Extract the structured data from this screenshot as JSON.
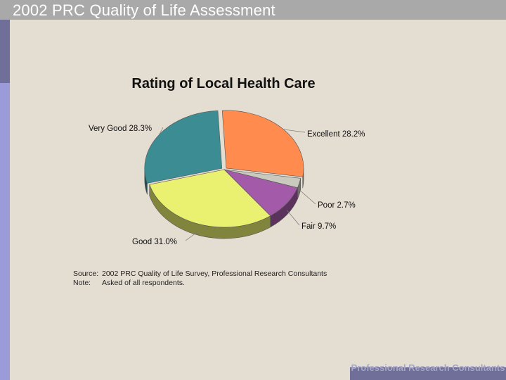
{
  "slide": {
    "title": "2002 PRC Quality of Life Assessment",
    "footer": "Professional Research Consultants"
  },
  "source": {
    "source_label": "Source:",
    "source_text": "2002 PRC Quality of Life Survey, Professional Research Consultants",
    "note_label": "Note:",
    "note_text": "Asked of all respondents."
  },
  "chart_data": {
    "type": "pie",
    "title": "Rating of Local Health Care",
    "slices": [
      {
        "label": "Excellent",
        "value": 28.2,
        "value_label": "28.2%",
        "color": "#ff8b4f"
      },
      {
        "label": "Poor",
        "value": 2.7,
        "value_label": "2.7%",
        "color": "#c9c9bd"
      },
      {
        "label": "Fair",
        "value": 9.7,
        "value_label": "9.7%",
        "color": "#a35aa8"
      },
      {
        "label": "Good",
        "value": 31.0,
        "value_label": "31.0%",
        "color": "#eaf06f"
      },
      {
        "label": "Very Good",
        "value": 28.3,
        "value_label": "28.3%",
        "color": "#3b8d93"
      }
    ]
  },
  "colors": {
    "background": "#e4ddd2",
    "title_bar": "#a9a9a9",
    "accent_dark": "#6f6f99",
    "accent_light": "#9b9bd9"
  }
}
